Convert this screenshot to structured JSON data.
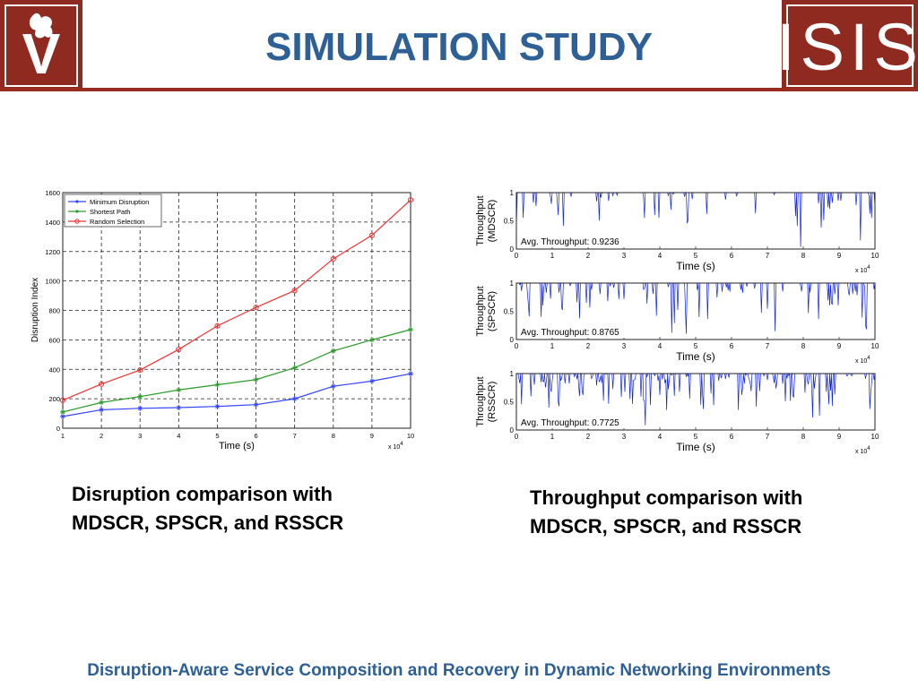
{
  "slide": {
    "title": "SIMULATION STUDY",
    "caption_left_line1": "Disruption comparison with",
    "caption_left_line2": "MDSCR, SPSCR, and RSSCR",
    "caption_right_line1": "Throughput comparison with",
    "caption_right_line2": "MDSCR, SPSCR, and RSSCR",
    "footer": "Disruption-Aware Service Composition and Recovery in Dynamic Networking Environments",
    "logo_left_letter": "V",
    "logo_right_text": "ISIS",
    "colors": {
      "title": "#2e5f95",
      "rule": "#9a2b1f",
      "logo": "#8e2a20"
    }
  },
  "chart_data": [
    {
      "type": "line",
      "xlabel": "Time (s)",
      "ylabel": "Disruption Index",
      "x_multiplier": "x 10^4",
      "x": [
        1,
        2,
        3,
        4,
        5,
        6,
        7,
        8,
        9,
        10
      ],
      "xlim": [
        1,
        10
      ],
      "ylim": [
        0,
        1600
      ],
      "yticks": [
        0,
        200,
        400,
        600,
        800,
        1000,
        1200,
        1400,
        1600
      ],
      "grid": true,
      "legend": "top-left",
      "series": [
        {
          "name": "Minimum Disruption",
          "color": "#3344ff",
          "marker": "star",
          "values": [
            80,
            125,
            135,
            140,
            148,
            160,
            200,
            285,
            320,
            370
          ]
        },
        {
          "name": "Shortest Path",
          "color": "#2a9a2a",
          "marker": "star",
          "values": [
            110,
            175,
            215,
            260,
            295,
            330,
            410,
            525,
            600,
            670
          ]
        },
        {
          "name": "Random Selection",
          "color": "#ee3333",
          "marker": "circle",
          "values": [
            190,
            300,
            395,
            535,
            695,
            820,
            935,
            1150,
            1310,
            1550
          ]
        }
      ]
    },
    {
      "type": "line",
      "xlabel": "Time (s)",
      "ylabel_line1": "Throughput",
      "ylabel_line2": "(MDSCR)",
      "x_multiplier": "x 10^4",
      "xlim": [
        0,
        10
      ],
      "ylim": [
        0,
        1
      ],
      "annotation": "Avg. Throughput: 0.9236",
      "mean": 0.9236,
      "color": "#1122dd"
    },
    {
      "type": "line",
      "xlabel": "Time (s)",
      "ylabel_line1": "Throughput",
      "ylabel_line2": "(SPSCR)",
      "x_multiplier": "x 10^4",
      "xlim": [
        0,
        10
      ],
      "ylim": [
        0,
        1
      ],
      "annotation": "Avg. Throughput: 0.8765",
      "mean": 0.8765,
      "color": "#1122dd"
    },
    {
      "type": "line",
      "xlabel": "Time (s)",
      "ylabel_line1": "Throughput",
      "ylabel_line2": "(RSSCR)",
      "x_multiplier": "x 10^4",
      "xlim": [
        0,
        10
      ],
      "ylim": [
        0,
        1
      ],
      "annotation": "Avg. Throughput: 0.7725",
      "mean": 0.7725,
      "color": "#1122dd"
    }
  ]
}
